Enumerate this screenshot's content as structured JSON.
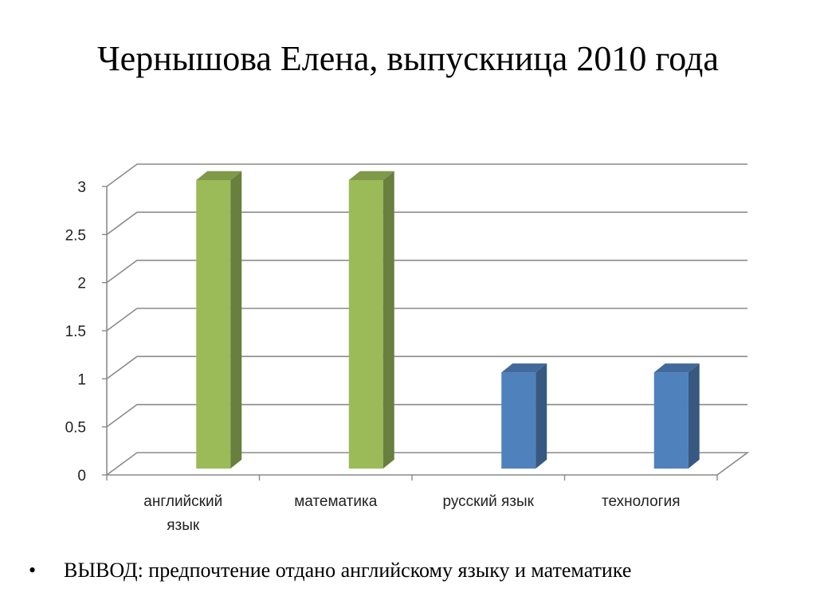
{
  "slide": {
    "title": "Чернышова Елена, выпускница 2010 года",
    "bullet_symbol": "•",
    "conclusion": "ВЫВОД: предпочтение отдано английскому языку и математике"
  },
  "chart_data": {
    "type": "bar",
    "style": "3d-clustered-column",
    "categories": [
      [
        "английский",
        "язык"
      ],
      [
        "математика"
      ],
      [
        "русский язык"
      ],
      [
        "технология"
      ]
    ],
    "values": [
      3,
      3,
      1,
      1
    ],
    "bar_colors": [
      "#9BBB59",
      "#9BBB59",
      "#4F81BD",
      "#4F81BD"
    ],
    "ylim": [
      0,
      3
    ],
    "yticks": [
      "0",
      "0.5",
      "1",
      "1.5",
      "2",
      "2.5",
      "3"
    ],
    "grid": true,
    "legend": "none"
  }
}
